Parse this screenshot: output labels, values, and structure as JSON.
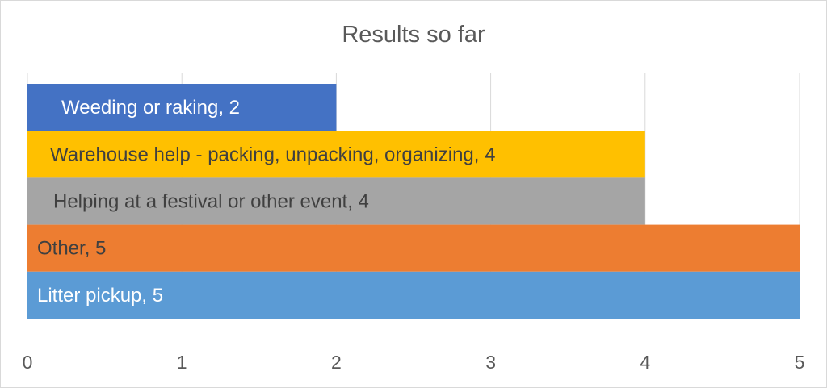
{
  "chart_data": {
    "type": "bar",
    "orientation": "horizontal",
    "title": "Results so far",
    "xlabel": "",
    "ylabel": "",
    "xlim": [
      0,
      5
    ],
    "x_ticks": [
      "0",
      "1",
      "2",
      "3",
      "4",
      "5"
    ],
    "grid": true,
    "legend": "none",
    "categories": [
      "Weeding or raking",
      "Warehouse help - packing, unpacking, organizing",
      "Helping at a festival or other event",
      "Other",
      "Litter pickup"
    ],
    "values": [
      2,
      4,
      4,
      5,
      5
    ],
    "data_labels": [
      "Weeding or raking, 2",
      "Warehouse help - packing, unpacking, organizing, 4",
      "Helping at a festival or other event, 4",
      "Other, 5",
      "Litter pickup, 5"
    ],
    "colors": [
      "#4472C4",
      "#FFC000",
      "#A5A5A5",
      "#ED7D31",
      "#5B9BD5"
    ],
    "label_colors": [
      "#ffffff",
      "#404040",
      "#404040",
      "#404040",
      "#ffffff"
    ]
  }
}
